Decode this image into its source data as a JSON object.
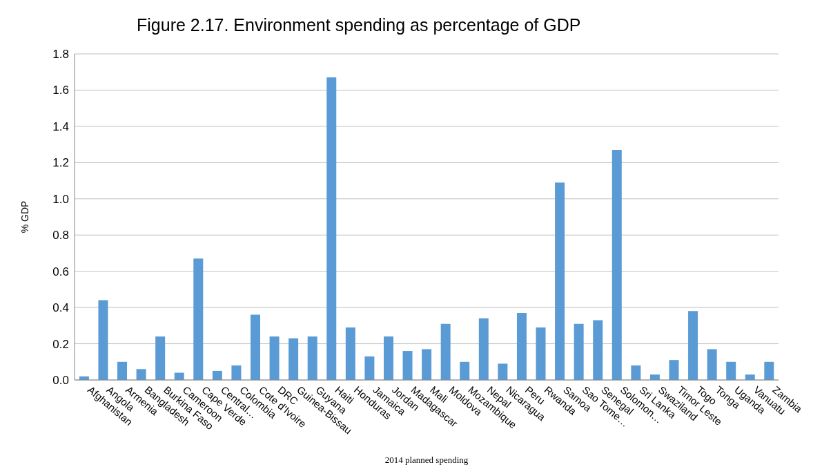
{
  "chart_data": {
    "type": "bar",
    "title": "Figure 2.17. Environment spending as percentage of GDP",
    "xlabel": "2014 planned spending",
    "ylabel": "% GDP",
    "categories": [
      "Afghanistan",
      "Angola",
      "Armenia",
      "Bangladesh",
      "Burkina Faso",
      "Cameroon",
      "Cape Verde",
      "Central…",
      "Colombia",
      "Cote d'Ivoire",
      "DRC",
      "Guinea-Bissau",
      "Guyana",
      "Haiti",
      "Honduras",
      "Jamaica",
      "Jordan",
      "Madagascar",
      "Mali",
      "Moldova",
      "Mozambique",
      "Nepal",
      "Nicaragua",
      "Peru",
      "Rwanda",
      "Samoa",
      "Sao Tome…",
      "Senegal",
      "Solomon…",
      "Sri Lanka",
      "Swaziland",
      "Timor Leste",
      "Togo",
      "Tonga",
      "Uganda",
      "Vanuatu",
      "Zambia"
    ],
    "values": [
      0.02,
      0.44,
      0.1,
      0.06,
      0.24,
      0.04,
      0.67,
      0.05,
      0.08,
      0.36,
      0.24,
      0.23,
      0.24,
      1.67,
      0.29,
      0.13,
      0.24,
      0.16,
      0.17,
      0.31,
      0.1,
      0.34,
      0.09,
      0.37,
      0.29,
      1.09,
      0.31,
      0.33,
      1.27,
      0.08,
      0.03,
      0.11,
      0.38,
      0.17,
      0.1,
      0.03,
      0.1
    ],
    "color": "#5b9bd5",
    "ylim": [
      0,
      1.8
    ],
    "yticks": [
      {
        "value": 0,
        "label": "0.0"
      },
      {
        "value": 0.2,
        "label": "0.2"
      },
      {
        "value": 0.4,
        "label": "0.4"
      },
      {
        "value": 0.6,
        "label": "0.6"
      },
      {
        "value": 0.8,
        "label": "0.8"
      },
      {
        "value": 1.0,
        "label": "1.0"
      },
      {
        "value": 1.2,
        "label": "1.2"
      },
      {
        "value": 1.4,
        "label": "1.4"
      },
      {
        "value": 1.6,
        "label": "1.6"
      },
      {
        "value": 1.8,
        "label": "1.8"
      }
    ],
    "grid": "y"
  }
}
